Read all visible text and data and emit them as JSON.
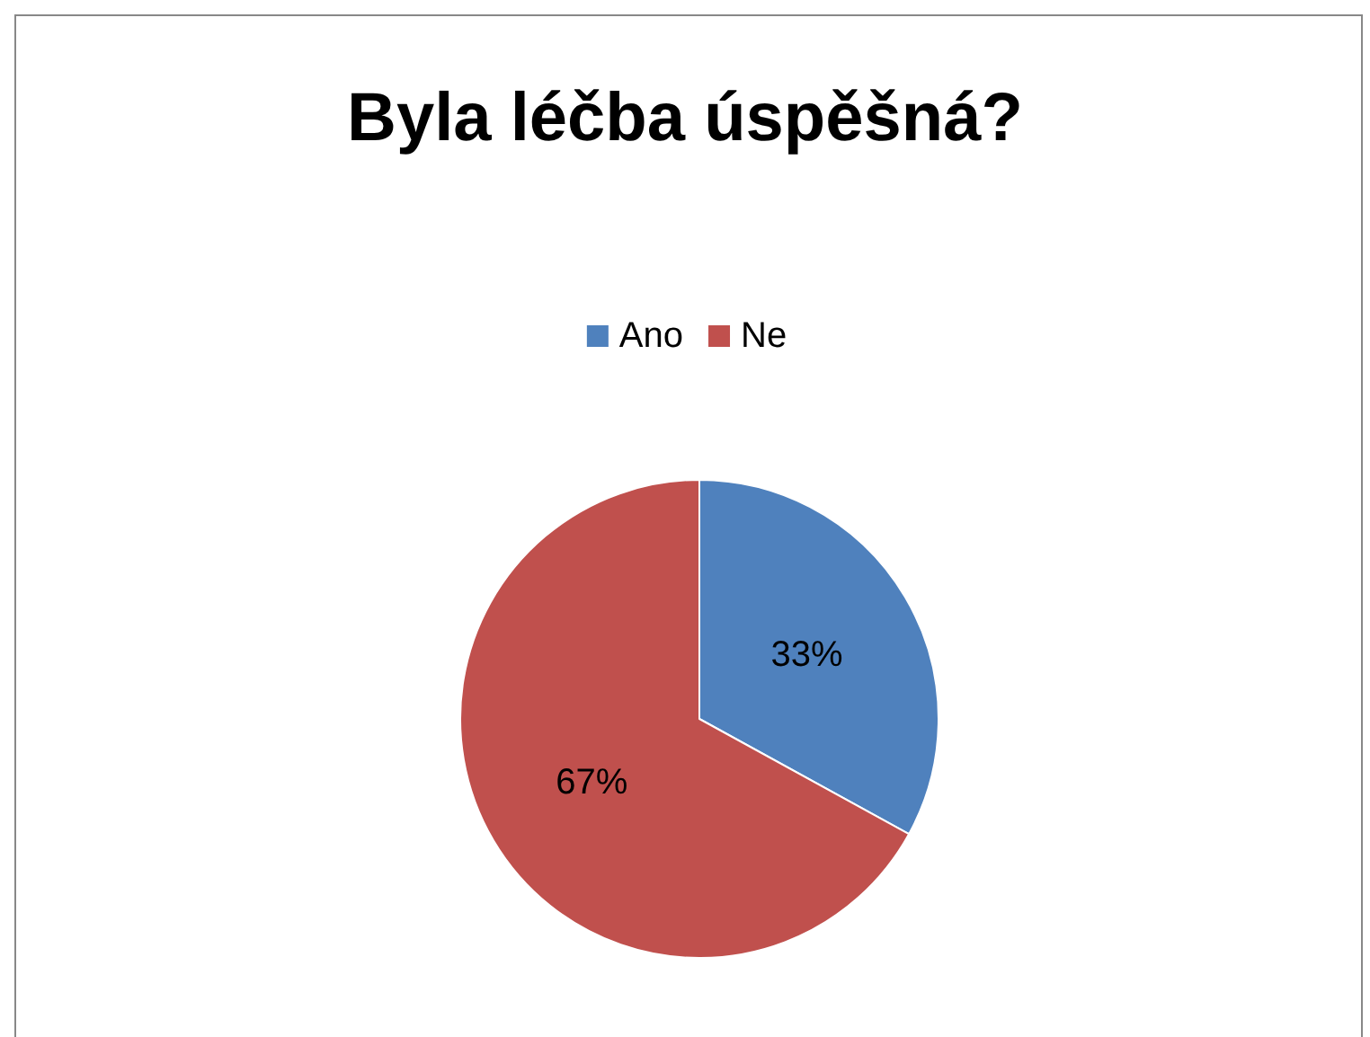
{
  "chart_data": {
    "type": "pie",
    "title": "Byla léčba úspěšná?",
    "categories": [
      "Ano",
      "Ne"
    ],
    "values": [
      33,
      67
    ],
    "colors": [
      "#4f81bd",
      "#c0504d"
    ],
    "value_labels": [
      "33%",
      "67%"
    ],
    "legend": "top"
  }
}
